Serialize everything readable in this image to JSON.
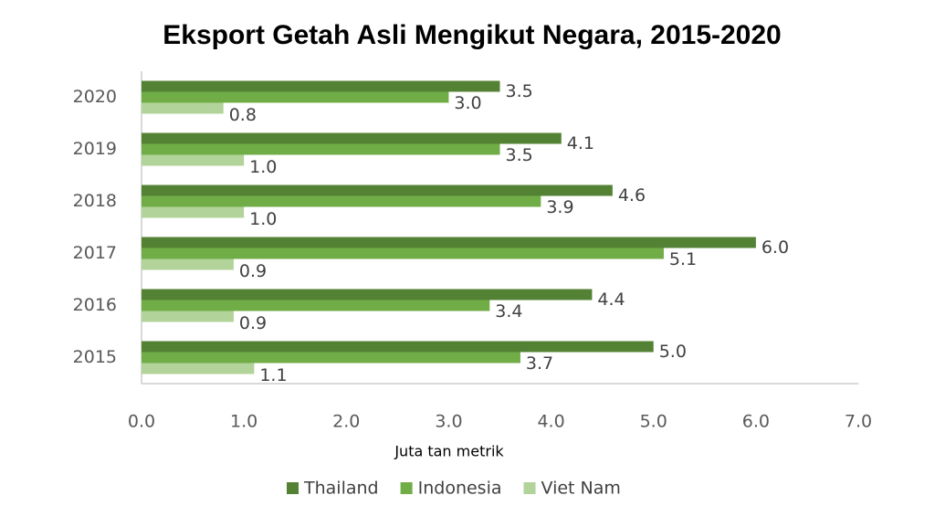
{
  "chart_data": {
    "type": "hbar",
    "title": "Eksport Getah Asli Mengikut Negara, 2015-2020",
    "x_label": "Juta tan metrik",
    "categories": [
      "2020",
      "2019",
      "2018",
      "2017",
      "2016",
      "2015"
    ],
    "series": [
      {
        "name": "Thailand",
        "color": "#548235",
        "values": [
          3.5,
          4.1,
          4.6,
          6.0,
          4.4,
          5.0
        ],
        "value_labels": [
          "3.5",
          "4.1",
          "4.6",
          "6.0",
          "4.4",
          "5.0"
        ]
      },
      {
        "name": "Indonesia",
        "color": "#70ad47",
        "values": [
          3.0,
          3.5,
          3.9,
          5.1,
          3.4,
          3.7
        ],
        "value_labels": [
          "3.0",
          "3.5",
          "3.9",
          "5.1",
          "3.4",
          "3.7"
        ]
      },
      {
        "name": "Viet Nam",
        "color": "#b2d39a",
        "values": [
          0.8,
          1.0,
          1.0,
          0.9,
          0.9,
          1.1
        ],
        "value_labels": [
          "0.8",
          "1.0",
          "1.0",
          "0.9",
          "0.9",
          "1.1"
        ]
      }
    ],
    "xlim": [
      0,
      7
    ],
    "xticks": [
      {
        "value": 0,
        "label": "0.0"
      },
      {
        "value": 1,
        "label": "1.0"
      },
      {
        "value": 2,
        "label": "2.0"
      },
      {
        "value": 3,
        "label": "3.0"
      },
      {
        "value": 4,
        "label": "4.0"
      },
      {
        "value": 5,
        "label": "5.0"
      },
      {
        "value": 6,
        "label": "6.0"
      },
      {
        "value": 7,
        "label": "7.0"
      }
    ],
    "legend": "bottom"
  }
}
